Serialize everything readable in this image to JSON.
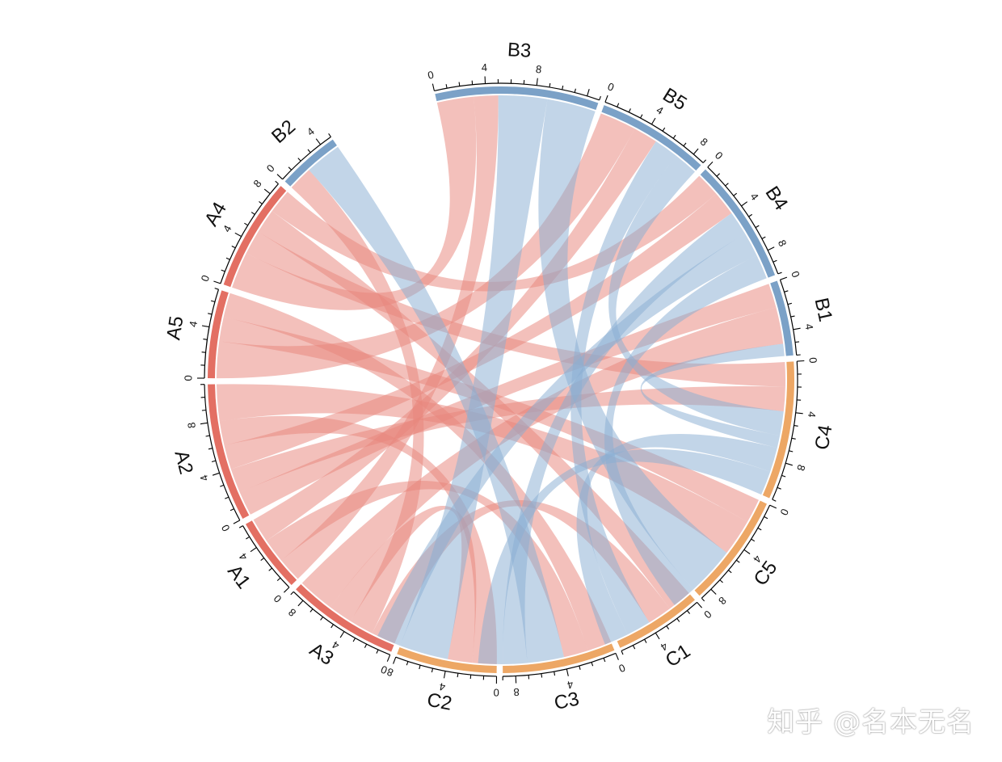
{
  "chart_data": {
    "type": "chord",
    "sector_order": [
      "B3",
      "B5",
      "B4",
      "B1",
      "C4",
      "C5",
      "C1",
      "C3",
      "C2",
      "A3",
      "A1",
      "A2",
      "A5",
      "A4",
      "B2"
    ],
    "sectors": {
      "B3": {
        "size": 13,
        "group": "B"
      },
      "B5": {
        "size": 9,
        "group": "B"
      },
      "B4": {
        "size": 10,
        "group": "B"
      },
      "B1": {
        "size": 6,
        "group": "B"
      },
      "C4": {
        "size": 11,
        "group": "C"
      },
      "C5": {
        "size": 9,
        "group": "C"
      },
      "C1": {
        "size": 7,
        "group": "C"
      },
      "C3": {
        "size": 9,
        "group": "C"
      },
      "C2": {
        "size": 8,
        "group": "C"
      },
      "A3": {
        "size": 9,
        "group": "A"
      },
      "A1": {
        "size": 6,
        "group": "A"
      },
      "A2": {
        "size": 11,
        "group": "A"
      },
      "A5": {
        "size": 7,
        "group": "A"
      },
      "A4": {
        "size": 9,
        "group": "A"
      },
      "B2": {
        "size": 5,
        "group": "B"
      }
    },
    "tick_labels": [
      "0",
      "4",
      "8"
    ],
    "links": [
      {
        "from": "A4",
        "to": "B3",
        "value": 3
      },
      {
        "from": "A4",
        "to": "C4",
        "value": 2
      },
      {
        "from": "A4",
        "to": "C1",
        "value": 2
      },
      {
        "from": "A4",
        "to": "B4",
        "value": 2
      },
      {
        "from": "A5",
        "to": "B5",
        "value": 3
      },
      {
        "from": "A5",
        "to": "C5",
        "value": 2
      },
      {
        "from": "A5",
        "to": "C3",
        "value": 2
      },
      {
        "from": "A2",
        "to": "B1",
        "value": 2
      },
      {
        "from": "A2",
        "to": "C4",
        "value": 2
      },
      {
        "from": "A2",
        "to": "B4",
        "value": 2
      },
      {
        "from": "A2",
        "to": "C2",
        "value": 2
      },
      {
        "from": "A2",
        "to": "C5",
        "value": 3
      },
      {
        "from": "A1",
        "to": "B3",
        "value": 2
      },
      {
        "from": "A1",
        "to": "C3",
        "value": 2
      },
      {
        "from": "A1",
        "to": "B5",
        "value": 2
      },
      {
        "from": "A3",
        "to": "C1",
        "value": 2
      },
      {
        "from": "A3",
        "to": "B2",
        "value": 2
      },
      {
        "from": "A3",
        "to": "C2",
        "value": 2
      },
      {
        "from": "A3",
        "to": "B1",
        "value": 3
      },
      {
        "from": "B2",
        "to": "C3",
        "value": 3
      },
      {
        "from": "B3",
        "to": "C2",
        "value": 4
      },
      {
        "from": "B3",
        "to": "C5",
        "value": 4
      },
      {
        "from": "B5",
        "to": "C1",
        "value": 2
      },
      {
        "from": "B5",
        "to": "C4",
        "value": 2
      },
      {
        "from": "B4",
        "to": "C3",
        "value": 2
      },
      {
        "from": "B4",
        "to": "C2",
        "value": 2
      },
      {
        "from": "B4",
        "to": "C5",
        "value": 2
      },
      {
        "from": "B1",
        "to": "C4",
        "value": 1
      },
      {
        "from": "C4",
        "to": "C1",
        "value": 2
      },
      {
        "from": "C4",
        "to": "C3",
        "value": 2
      }
    ],
    "colors": {
      "A": "#e36f63",
      "B": "#7ba1c7",
      "C": "#eda765"
    },
    "link_colors": {
      "A": "#e8877c",
      "B": "#8bafd2"
    }
  },
  "watermark": "知乎 @名本无名"
}
